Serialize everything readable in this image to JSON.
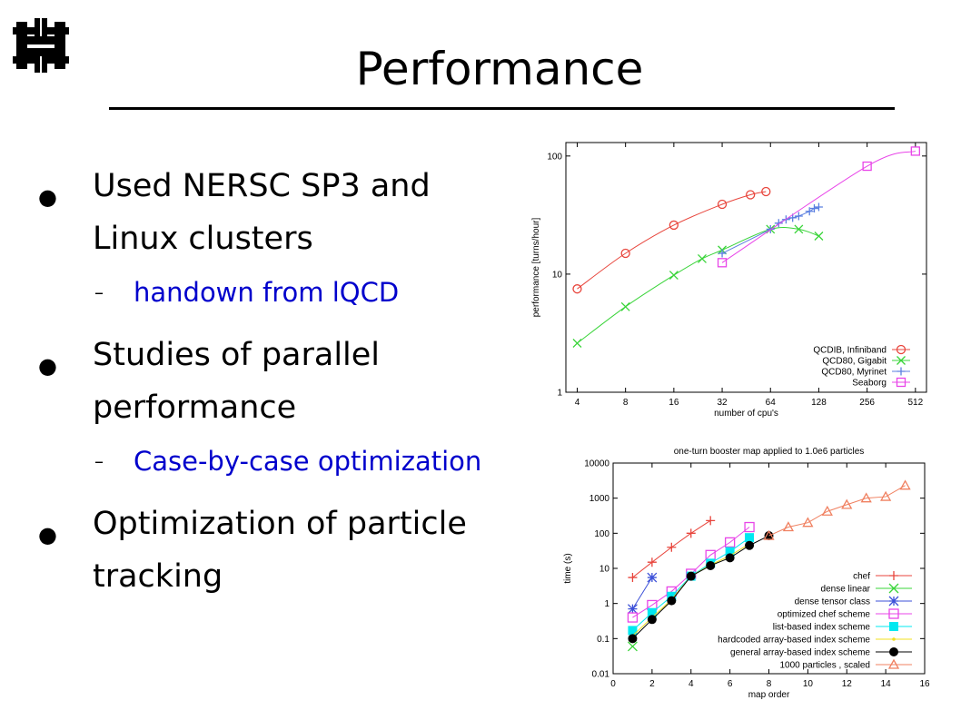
{
  "slide": {
    "title": "Performance",
    "bullets": [
      {
        "text": "Used NERSC SP3 and Linux clusters",
        "sub": "handown from lQCD"
      },
      {
        "text": "Studies of parallel performance",
        "sub": "Case-by-case optimization"
      },
      {
        "text": "Optimization of particle tracking",
        "sub": ""
      }
    ]
  },
  "chart_data": [
    {
      "type": "line",
      "title": "",
      "xlabel": "number of cpu's",
      "ylabel": "performance [turns/hour]",
      "xscale": "log2",
      "yscale": "log10",
      "xlim": [
        3.4,
        600
      ],
      "ylim": [
        1,
        130
      ],
      "xticks": [
        "4",
        "8",
        "16",
        "32",
        "64",
        "128",
        "256",
        "512"
      ],
      "yticks": [
        "1",
        "10",
        "100"
      ],
      "legend_position": "bottom-right",
      "grid": false,
      "series": [
        {
          "name": "QCDIB, Infiniband",
          "marker": "circle",
          "color": "#e8453c",
          "x": [
            4,
            8,
            16,
            32,
            48,
            60
          ],
          "y": [
            7.5,
            15,
            26,
            39,
            47,
            50
          ]
        },
        {
          "name": "QCD80, Gigabit",
          "marker": "x",
          "color": "#39d439",
          "x": [
            4,
            8,
            16,
            24,
            32,
            64,
            96,
            128
          ],
          "y": [
            2.6,
            5.3,
            9.8,
            13.5,
            16,
            24,
            24,
            21
          ]
        },
        {
          "name": "QCD80, Myrinet",
          "marker": "plus",
          "color": "#5b7fe0",
          "x": [
            32,
            64,
            72,
            80,
            88,
            96,
            112,
            120,
            128
          ],
          "y": [
            15,
            24,
            27,
            29,
            30,
            31,
            34,
            36,
            37
          ]
        },
        {
          "name": "Seaborg",
          "marker": "square",
          "color": "#e845e8",
          "x": [
            32,
            256,
            512
          ],
          "y": [
            12.5,
            82,
            110
          ]
        }
      ]
    },
    {
      "type": "line",
      "title": "one-turn booster map applied to 1.0e6 particles",
      "xlabel": "map order",
      "ylabel": "time (s)",
      "yscale": "log10",
      "xlim": [
        0,
        16
      ],
      "ylim": [
        0.01,
        10000
      ],
      "xticks": [
        "0",
        "2",
        "4",
        "6",
        "8",
        "10",
        "12",
        "14",
        "16"
      ],
      "yticks": [
        "0.01",
        "0.1",
        "1",
        "10",
        "100",
        "1000",
        "10000"
      ],
      "legend_position": "bottom-right",
      "grid": false,
      "series": [
        {
          "name": "chef",
          "marker": "plus",
          "color": "#e8453c",
          "x": [
            1,
            2,
            3,
            4,
            5
          ],
          "y": [
            5.5,
            15,
            40,
            100,
            230
          ]
        },
        {
          "name": "dense linear",
          "marker": "x",
          "color": "#39d439",
          "x": [
            1
          ],
          "y": [
            0.06
          ]
        },
        {
          "name": "dense tensor class",
          "marker": "star",
          "color": "#3c50d8",
          "x": [
            1,
            2
          ],
          "y": [
            0.7,
            5.5
          ]
        },
        {
          "name": "optimized chef scheme",
          "marker": "square",
          "color": "#e845e8",
          "x": [
            1,
            2,
            3,
            4,
            5,
            6,
            7
          ],
          "y": [
            0.4,
            0.9,
            2.2,
            7,
            24,
            55,
            150
          ]
        },
        {
          "name": "list-based index scheme",
          "marker": "filled-square",
          "color": "#00e8f0",
          "x": [
            1,
            2,
            3,
            4,
            5,
            6,
            7
          ],
          "y": [
            0.17,
            0.55,
            1.6,
            6,
            14,
            30,
            75
          ]
        },
        {
          "name": "hardcoded array-based index scheme",
          "marker": "dot",
          "color": "#f0e020",
          "x": [
            1,
            2,
            3,
            4,
            5,
            6,
            7
          ],
          "y": [
            0.12,
            0.4,
            1.3,
            6,
            12.5,
            23,
            50
          ]
        },
        {
          "name": "general array-based index scheme",
          "marker": "filled-circle",
          "color": "#000000",
          "x": [
            1,
            2,
            3,
            4,
            5,
            6,
            7,
            8
          ],
          "y": [
            0.1,
            0.35,
            1.2,
            6,
            12,
            20,
            45,
            85
          ]
        },
        {
          "name": "1000 particles , scaled",
          "marker": "triangle",
          "color": "#f08060",
          "x": [
            8,
            9,
            10,
            11,
            12,
            13,
            14,
            15
          ],
          "y": [
            85,
            150,
            200,
            420,
            650,
            1000,
            1100,
            2300
          ]
        }
      ]
    }
  ]
}
